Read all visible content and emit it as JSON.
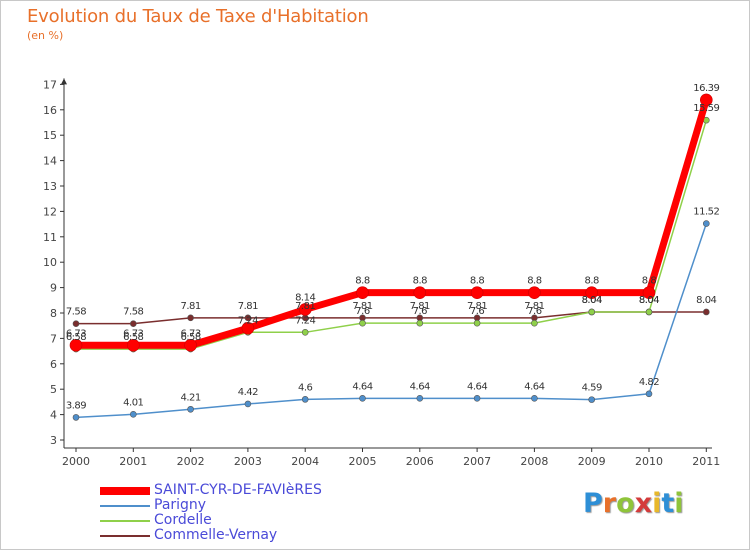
{
  "chart_data": {
    "type": "line",
    "title": "Evolution du Taux de Taxe d'Habitation",
    "ylabel": "(en %)",
    "x": [
      "2000",
      "2001",
      "2002",
      "2003",
      "2004",
      "2005",
      "2006",
      "2007",
      "2008",
      "2009",
      "2010",
      "2011"
    ],
    "ylim": [
      3,
      17
    ],
    "yticks": [
      3,
      4,
      5,
      6,
      7,
      8,
      9,
      10,
      11,
      12,
      13,
      14,
      15,
      16,
      17
    ],
    "grid": false,
    "legend_position": "bottom-left",
    "series": [
      {
        "name": "SAINT-CYR-DE-FAVIèRES",
        "color": "#ff0000",
        "values": [
          6.73,
          6.73,
          6.73,
          7.4,
          8.14,
          8.8,
          8.8,
          8.8,
          8.8,
          8.8,
          8.8,
          16.39
        ],
        "labels": [
          "6.73",
          "6.73",
          "6.73",
          "",
          "8.14",
          "8.8",
          "8.8",
          "8.8",
          "8.8",
          "8.8",
          "8.8",
          "16.39"
        ]
      },
      {
        "name": "Parigny",
        "color": "#4f8fcb",
        "values": [
          3.89,
          4.01,
          4.21,
          4.42,
          4.6,
          4.64,
          4.64,
          4.64,
          4.64,
          4.59,
          4.82,
          11.52
        ],
        "labels": [
          "3.89",
          "4.01",
          "4.21",
          "4.42",
          "4.6",
          "4.64",
          "4.64",
          "4.64",
          "4.64",
          "4.59",
          "4.82",
          "11.52"
        ]
      },
      {
        "name": "Cordelle",
        "color": "#8fd04a",
        "values": [
          6.58,
          6.58,
          6.58,
          7.24,
          7.24,
          7.6,
          7.6,
          7.6,
          7.6,
          8.04,
          8.04,
          15.59
        ],
        "labels": [
          "6.58",
          "6.58",
          "6.58",
          "7.24",
          "7.24",
          "7.6",
          "7.6",
          "7.6",
          "7.6",
          "8.04",
          "8.04",
          "15.59"
        ]
      },
      {
        "name": "Commelle-Vernay",
        "color": "#7a2e2e",
        "values": [
          7.58,
          7.58,
          7.81,
          7.81,
          7.81,
          7.81,
          7.81,
          7.81,
          7.81,
          8.04,
          8.04,
          8.04
        ],
        "labels": [
          "7.58",
          "7.58",
          "7.81",
          "7.81",
          "7.81",
          "7.81",
          "7.81",
          "7.81",
          "7.81",
          "8.04",
          "8.04",
          "8.04"
        ]
      }
    ]
  },
  "legend": {
    "items": [
      {
        "label": "SAINT-CYR-DE-FAVIèRES",
        "color": "#ff0000"
      },
      {
        "label": "Parigny",
        "color": "#4f8fcb"
      },
      {
        "label": "Cordelle",
        "color": "#8fd04a"
      },
      {
        "label": "Commelle-Vernay",
        "color": "#7a2e2e"
      }
    ]
  },
  "logo": {
    "letters": [
      "P",
      "r",
      "o",
      "x",
      "i",
      "t",
      "i"
    ],
    "colors": [
      "#2e8fd6",
      "#e8702a",
      "#8fc43a",
      "#d43b3b",
      "#e8b82a",
      "#2e8fd6",
      "#8fc43a"
    ]
  }
}
